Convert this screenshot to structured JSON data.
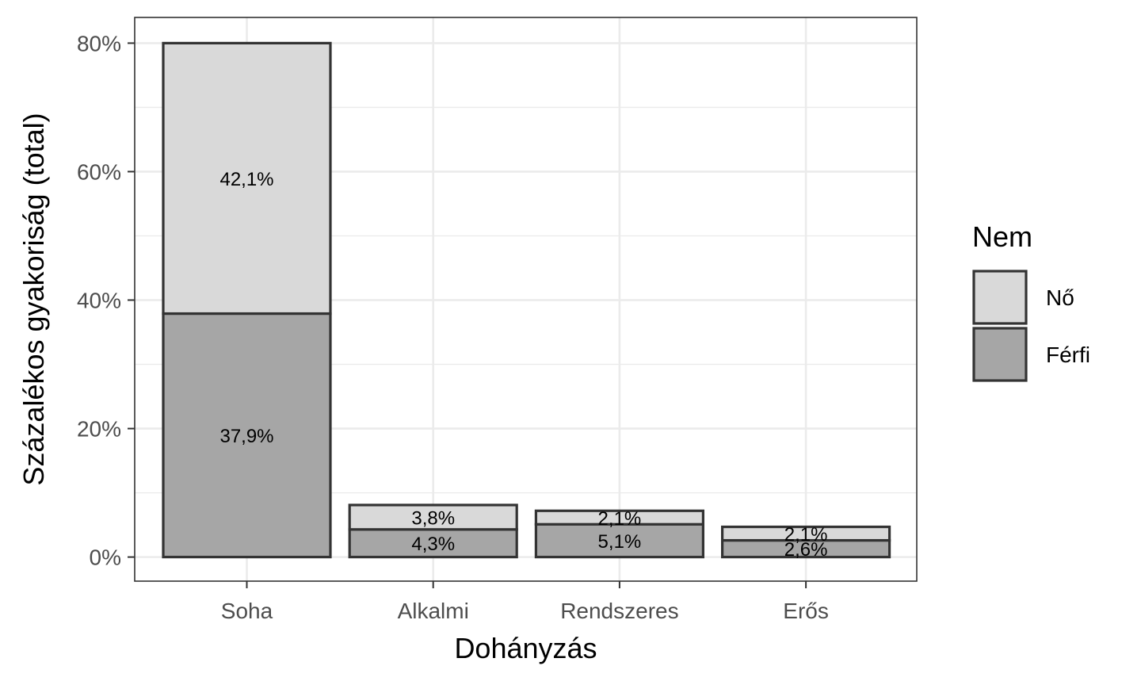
{
  "chart_data": {
    "type": "bar",
    "stacked": true,
    "categories": [
      "Soha",
      "Alkalmi",
      "Rendszeres",
      "Erős"
    ],
    "series": [
      {
        "name": "Férfi",
        "values": [
          37.9,
          4.3,
          5.1,
          2.6
        ],
        "labels": [
          "37,9%",
          "4,3%",
          "5,1%",
          "2,6%"
        ],
        "color": "#a6a6a6"
      },
      {
        "name": "Nő",
        "values": [
          42.1,
          3.8,
          2.1,
          2.1
        ],
        "labels": [
          "42,1%",
          "3,8%",
          "2,1%",
          "2,1%"
        ],
        "color": "#d9d9d9"
      }
    ],
    "xlabel": "Dohányzás",
    "ylabel": "Százalékos gyakoriság (total)",
    "ylim": [
      -3.75,
      84
    ],
    "yticks": [
      0,
      20,
      40,
      60,
      80
    ],
    "ytick_labels": [
      "0%",
      "20%",
      "40%",
      "60%",
      "80%"
    ],
    "legend": {
      "title": "Nem",
      "position": "right",
      "entries": [
        {
          "label": "Nő",
          "color": "#d9d9d9"
        },
        {
          "label": "Férfi",
          "color": "#a6a6a6"
        }
      ]
    },
    "grid": true,
    "colors": {
      "bar_border": "#333333",
      "grid": "#ebebeb",
      "panel_border": "#333333"
    }
  }
}
